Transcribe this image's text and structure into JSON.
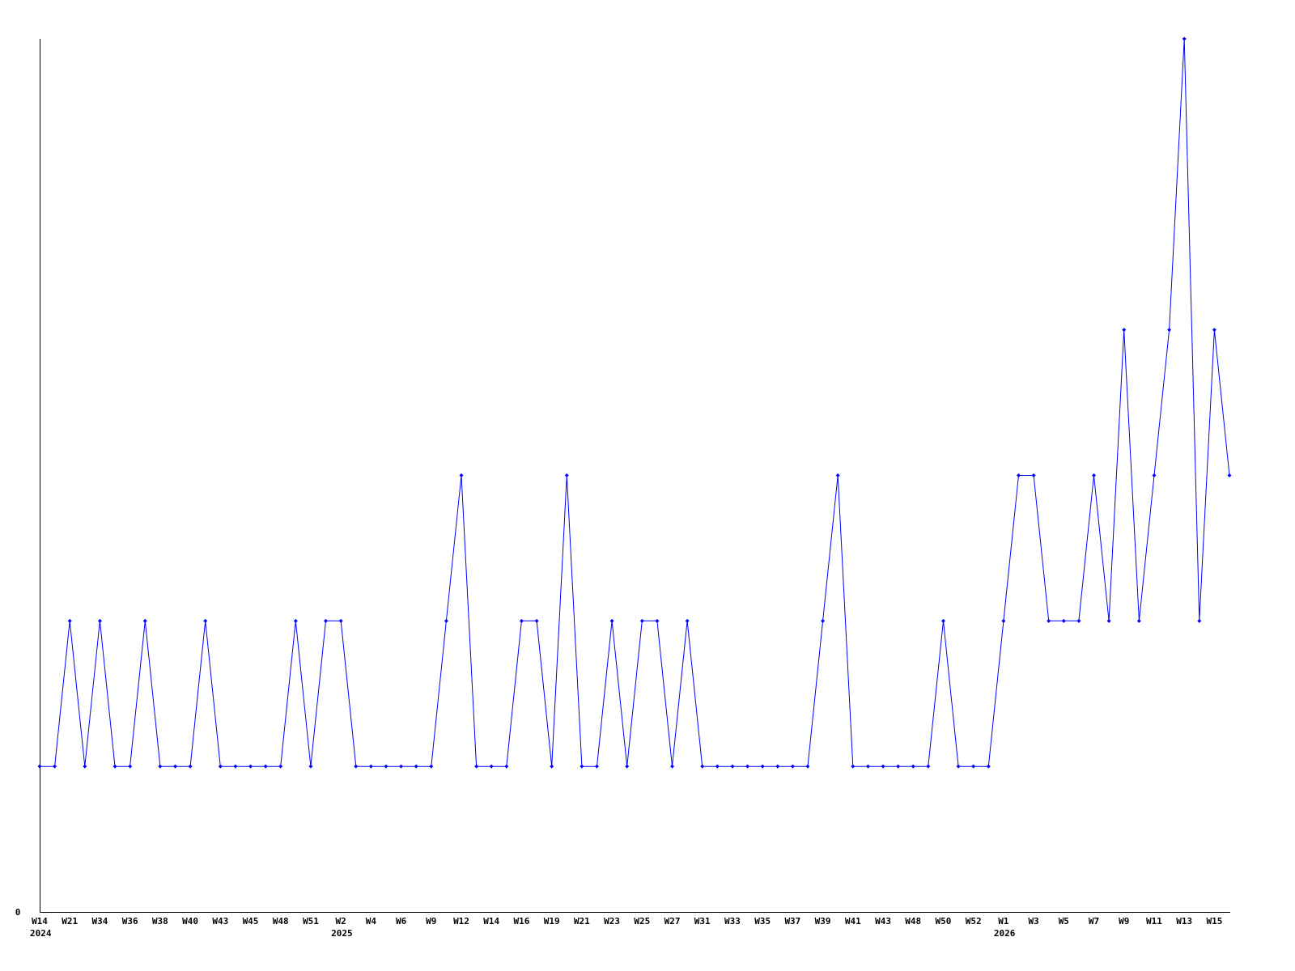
{
  "chart_data": {
    "type": "line",
    "title": "",
    "xlabel": "",
    "ylabel": "",
    "ylim": [
      0,
      6
    ],
    "y_ticks": [
      "0"
    ],
    "grid": false,
    "line_color": "#0000ff",
    "x_tick_labels": [
      "W14",
      "W21",
      "W34",
      "W36",
      "W38",
      "W40",
      "W43",
      "W45",
      "W48",
      "W51",
      "W2",
      "W4",
      "W6",
      "W9",
      "W12",
      "W14",
      "W16",
      "W19",
      "W21",
      "W23",
      "W25",
      "W27",
      "W31",
      "W33",
      "W35",
      "W37",
      "W39",
      "W41",
      "W43",
      "W48",
      "W50",
      "W52",
      "W1",
      "W3",
      "W5",
      "W7",
      "W9",
      "W11",
      "W13",
      "W15"
    ],
    "year_labels": [
      {
        "label": "2024",
        "at_tick": 0
      },
      {
        "label": "2025",
        "at_tick": 10
      },
      {
        "label": "2026",
        "at_tick": 32
      }
    ],
    "values": [
      1,
      1,
      2,
      1,
      2,
      1,
      1,
      2,
      1,
      1,
      1,
      2,
      1,
      1,
      1,
      1,
      1,
      2,
      1,
      2,
      2,
      1,
      1,
      1,
      1,
      1,
      1,
      2,
      3,
      1,
      1,
      1,
      2,
      2,
      1,
      3,
      1,
      1,
      2,
      1,
      2,
      2,
      1,
      2,
      1,
      1,
      1,
      1,
      1,
      1,
      1,
      1,
      2,
      3,
      1,
      1,
      1,
      1,
      1,
      1,
      2,
      1,
      1,
      1,
      2,
      3,
      3,
      2,
      2,
      2,
      3,
      2,
      4,
      2,
      3,
      4,
      6,
      2,
      4,
      3
    ]
  }
}
